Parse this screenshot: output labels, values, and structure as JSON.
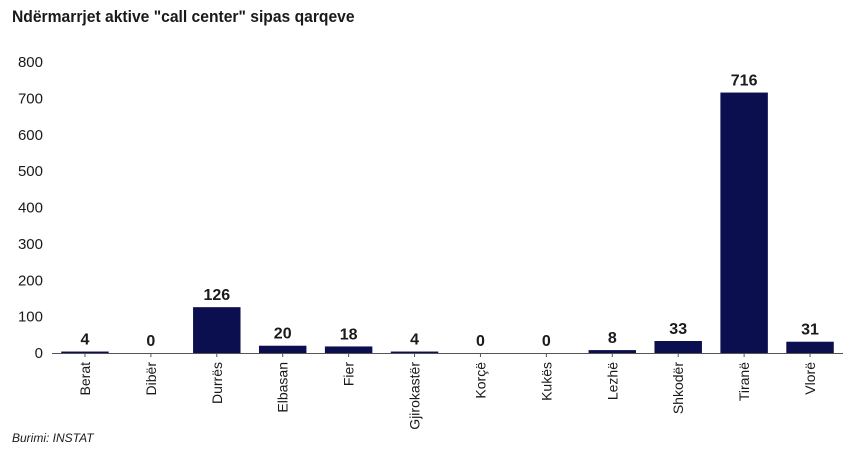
{
  "chart_data": {
    "type": "bar",
    "title": "Ndërmarrjet aktive \"call center\" sipas qarqeve",
    "categories": [
      "Berat",
      "Dibër",
      "Durrës",
      "Elbasan",
      "Fier",
      "Gjirokastër",
      "Korçë",
      "Kukës",
      "Lezhë",
      "Shkodër",
      "Tiranë",
      "Vlorë"
    ],
    "values": [
      4,
      0,
      126,
      20,
      18,
      4,
      0,
      0,
      8,
      33,
      716,
      31
    ],
    "xlabel": "",
    "ylabel": "",
    "ylim": [
      0,
      800
    ],
    "yticks": [
      0,
      100,
      200,
      300,
      400,
      500,
      600,
      700,
      800
    ],
    "grid": false,
    "legend": "none",
    "bar_color": "#0c0f4f",
    "source": "Burimi:  INSTAT"
  }
}
